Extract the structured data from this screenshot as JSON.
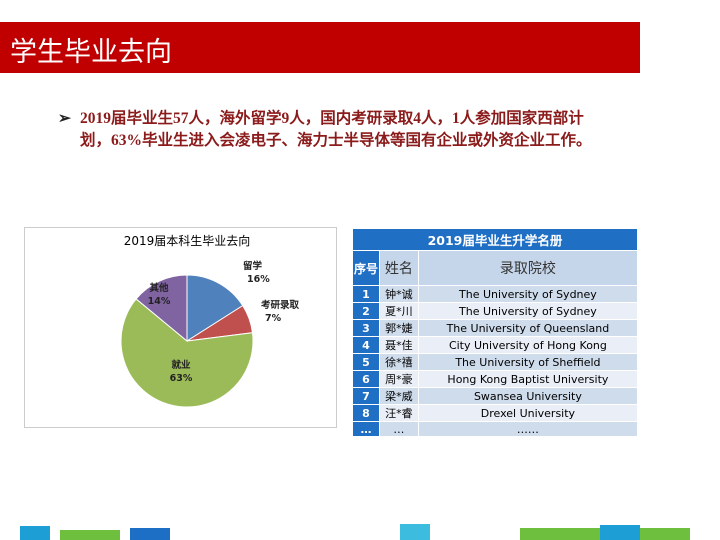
{
  "header": {
    "title": "学生毕业去向"
  },
  "bullet": "2019届毕业生57人，海外留学9人，国内考研录取4人，1人参加国家西部计划，63%毕业生进入会凌电子、海力士半导体等国有企业或外资企业工作。",
  "chart_data": {
    "type": "pie",
    "title": "2019届本科生毕业去向",
    "categories": [
      "留学",
      "考研录取",
      "就业",
      "其他"
    ],
    "values": [
      16,
      7,
      63,
      14
    ],
    "value_labels": [
      "16%",
      "7%",
      "63%",
      "14%"
    ],
    "colors": [
      "#4f81bd",
      "#c0504d",
      "#9bbb59",
      "#8064a2"
    ]
  },
  "table": {
    "title": "2019届毕业生升学名册",
    "header": [
      "序号",
      "姓名",
      "录取院校"
    ],
    "rows": [
      [
        "1",
        "钟*诚",
        "The University of Sydney"
      ],
      [
        "2",
        "夏*川",
        "The University of Sydney"
      ],
      [
        "3",
        "郭*婕",
        "The University of Queensland"
      ],
      [
        "4",
        "聂*佳",
        "City University of Hong Kong"
      ],
      [
        "5",
        "徐*禧",
        "The University of Sheffield"
      ],
      [
        "6",
        "周*豪",
        "Hong Kong Baptist University"
      ],
      [
        "7",
        "梁*威",
        "Swansea University"
      ],
      [
        "8",
        "汪*睿",
        "Drexel University"
      ],
      [
        "…",
        "…",
        "……"
      ]
    ]
  }
}
